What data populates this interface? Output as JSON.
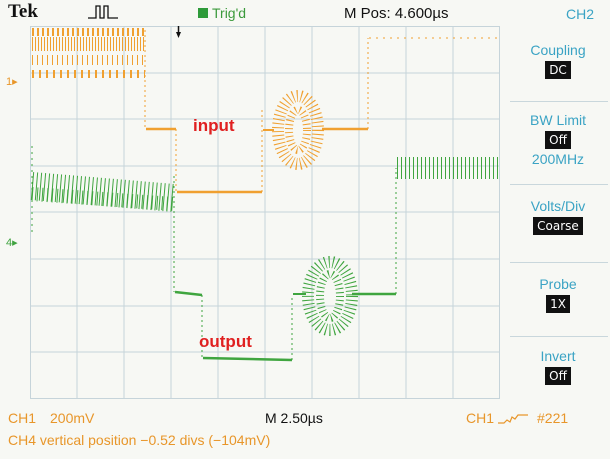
{
  "header": {
    "brand": "Tek",
    "trigger_status": "Trig'd",
    "horizontal_position": "M Pos: 4.600µs",
    "channel_menu_title": "CH2",
    "acquire_icon": "pulse-acquire-icon",
    "trigger_icon": "trigger-arrow-icon"
  },
  "side_menu": {
    "items": [
      {
        "label": "Coupling",
        "value": "DC"
      },
      {
        "label": "BW Limit",
        "value": "Off",
        "sub": "200MHz"
      },
      {
        "label": "Volts/Div",
        "value": "Coarse"
      },
      {
        "label": "Probe",
        "value": "1X"
      },
      {
        "label": "Invert",
        "value": "Off"
      }
    ]
  },
  "markers": {
    "ch1": "1▸",
    "ch4": "4▸"
  },
  "annotations": {
    "input": "input",
    "output": "output"
  },
  "status": {
    "ch1_label": "CH1",
    "ch1_scale": "200mV",
    "timebase": "M 2.50µs",
    "trigger_source": "CH1",
    "acquisition_count": "#221",
    "message": "CH4 vertical position −0.52 divs (−104mV)"
  },
  "colors": {
    "background": "#f7f8f4",
    "grid": "#c6d4da",
    "ch1_trace": "#f0a030",
    "ch4_trace": "#3fa53f",
    "menu_text": "#3aa3c4",
    "annotation": "#e02020"
  }
}
